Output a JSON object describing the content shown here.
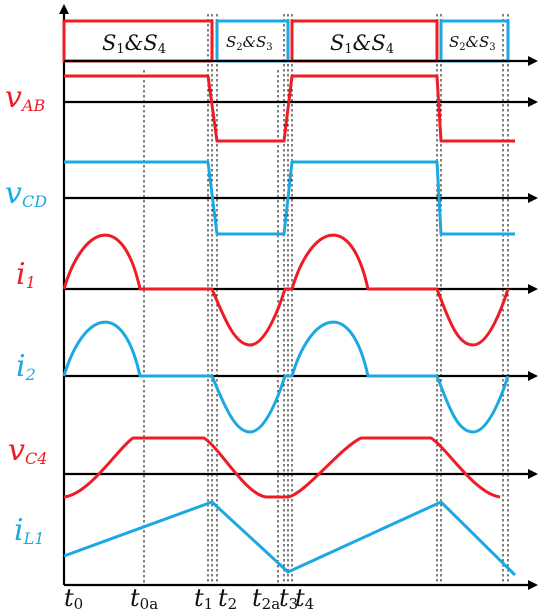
{
  "signals": {
    "vab": {
      "main": "v",
      "sub": "AB",
      "color": "#ee1c25"
    },
    "vcd": {
      "main": "v",
      "sub": "CD",
      "color": "#1ca8e0"
    },
    "i1": {
      "main": "i",
      "sub": "1",
      "color": "#ee1c25"
    },
    "i2": {
      "main": "i",
      "sub": "2",
      "color": "#1ca8e0"
    },
    "vc4": {
      "main": "v",
      "sub": "C4",
      "color": "#ee1c25"
    },
    "il1": {
      "main": "i",
      "sub": "L1",
      "color": "#1ca8e0"
    }
  },
  "switching": {
    "s1s4": {
      "S": "S",
      "a": "1",
      "amp": "&",
      "b": "S",
      "c": "4"
    },
    "s2s3": {
      "S": "S",
      "a": "2",
      "amp": "&",
      "b": "S",
      "c": "3"
    }
  },
  "time_labels": {
    "t0": {
      "main": "t",
      "sub": "0"
    },
    "t0a": {
      "main": "t",
      "sub": "0a"
    },
    "t1": {
      "main": "t",
      "sub": "1"
    },
    "t2": {
      "main": "t",
      "sub": "2"
    },
    "t2a": {
      "main": "t",
      "sub": "2a"
    },
    "t3": {
      "main": "t",
      "sub": "3"
    },
    "t4": {
      "main": "t",
      "sub": "4"
    }
  }
}
